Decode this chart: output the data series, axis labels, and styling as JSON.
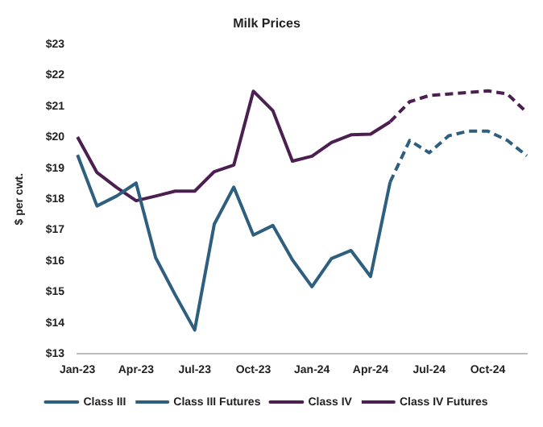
{
  "chart_data": {
    "type": "line",
    "title": "Milk Prices",
    "ylabel": "$ per cwt.",
    "categories": [
      "Jan-23",
      null,
      null,
      "Apr-23",
      null,
      null,
      "Jul-23",
      null,
      null,
      "Oct-23",
      null,
      null,
      "Jan-24",
      null,
      null,
      "Apr-24",
      null,
      null,
      "Jul-24",
      null,
      null,
      "Oct-24",
      null,
      null
    ],
    "series": [
      {
        "name": "Class III",
        "color": "#2e5f7f",
        "line_style": "solid",
        "values": [
          19.43,
          17.78,
          18.1,
          18.52,
          16.11,
          14.91,
          13.77,
          17.19,
          18.39,
          16.84,
          17.15,
          16.04,
          15.17,
          16.08,
          16.34,
          15.5,
          18.55,
          null,
          null,
          null,
          null,
          null,
          null,
          null
        ]
      },
      {
        "name": "Class III Futures",
        "color": "#2e5f7f",
        "line_style": "dashed",
        "values": [
          null,
          null,
          null,
          null,
          null,
          null,
          null,
          null,
          null,
          null,
          null,
          null,
          null,
          null,
          null,
          null,
          18.55,
          19.9,
          19.5,
          20.05,
          20.2,
          20.2,
          19.9,
          19.4
        ]
      },
      {
        "name": "Class IV",
        "color": "#4b1f4f",
        "line_style": "solid",
        "values": [
          20.01,
          18.86,
          18.38,
          17.95,
          18.1,
          18.26,
          18.26,
          18.89,
          19.1,
          21.49,
          20.86,
          19.23,
          19.39,
          19.83,
          20.08,
          20.1,
          20.5,
          null,
          null,
          null,
          null,
          null,
          null,
          null
        ]
      },
      {
        "name": "Class IV Futures",
        "color": "#4b1f4f",
        "line_style": "dashed",
        "values": [
          null,
          null,
          null,
          null,
          null,
          null,
          null,
          null,
          null,
          null,
          null,
          null,
          null,
          null,
          null,
          null,
          20.5,
          21.15,
          21.35,
          21.4,
          21.45,
          21.5,
          21.4,
          20.8
        ]
      }
    ],
    "ylim": [
      13,
      23
    ],
    "yticks": [
      {
        "value": 13,
        "label": "$13"
      },
      {
        "value": 14,
        "label": "$14"
      },
      {
        "value": 15,
        "label": "$15"
      },
      {
        "value": 16,
        "label": "$16"
      },
      {
        "value": 17,
        "label": "$17"
      },
      {
        "value": 18,
        "label": "$18"
      },
      {
        "value": 19,
        "label": "$19"
      },
      {
        "value": 20,
        "label": "$20"
      },
      {
        "value": 21,
        "label": "$21"
      },
      {
        "value": 22,
        "label": "$22"
      },
      {
        "value": 23,
        "label": "$23"
      }
    ],
    "grid": false,
    "legend": "bottom",
    "marker": "none"
  }
}
